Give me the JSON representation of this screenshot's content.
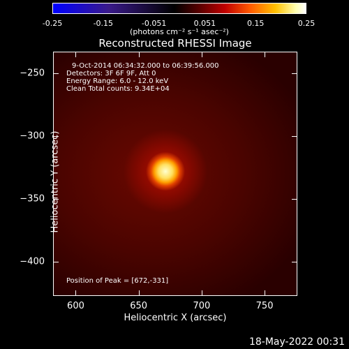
{
  "colorbar": {
    "ticks": [
      "-0.25",
      "-0.15",
      "-0.051",
      "0.051",
      "0.15",
      "0.25"
    ],
    "unit": "(photons cm⁻² s⁻¹ asec⁻²)",
    "range": [
      -0.25,
      0.25
    ]
  },
  "chart_data": {
    "type": "heatmap",
    "title": "Reconstructed RHESSI Image",
    "xlabel": "Heliocentric X (arcsec)",
    "ylabel": "Heliocentric Y (arcsec)",
    "xlim": [
      582,
      776
    ],
    "ylim": [
      -427,
      -233
    ],
    "x_ticks": [
      600,
      650,
      700,
      750
    ],
    "y_ticks": [
      -250,
      -300,
      -350,
      -400
    ],
    "peak": [
      672,
      -331
    ],
    "annotations": {
      "time": "9-Oct-2014 06:34:32.000 to 06:39:56.000",
      "detectors": "Detectors: 3F 6F 9F, Att 0",
      "energy": "Energy Range: 6.0 - 12.0 keV",
      "clean": "Clean    Total counts: 9.34E+04",
      "peak_text": "Position of Peak = [672,-331]"
    }
  },
  "footer": {
    "date": "18-May-2022 00:31"
  }
}
